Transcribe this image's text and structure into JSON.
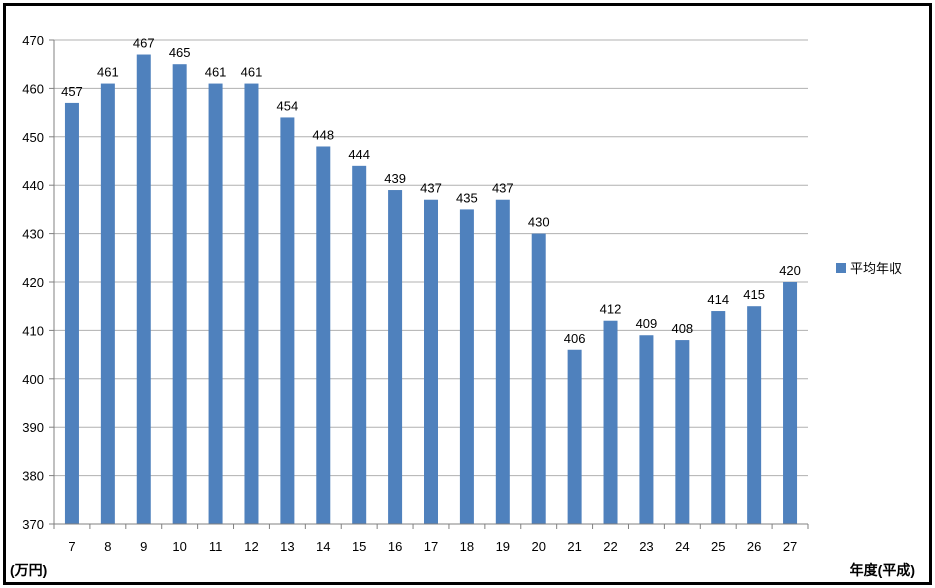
{
  "chart_data": {
    "type": "bar",
    "categories": [
      "7",
      "8",
      "9",
      "10",
      "11",
      "12",
      "13",
      "14",
      "15",
      "16",
      "17",
      "18",
      "19",
      "20",
      "21",
      "22",
      "23",
      "24",
      "25",
      "26",
      "27"
    ],
    "series": [
      {
        "name": "平均年収",
        "values": [
          457,
          461,
          467,
          465,
          461,
          461,
          454,
          448,
          444,
          439,
          437,
          435,
          437,
          430,
          406,
          412,
          409,
          408,
          414,
          415,
          420
        ]
      }
    ],
    "y_ticks": [
      "370",
      "380",
      "390",
      "400",
      "410",
      "420",
      "430",
      "440",
      "450",
      "460",
      "470"
    ],
    "ylim": [
      370,
      470
    ],
    "ylabel": "(万円)",
    "xlabel": "年度(平成)",
    "grid": true,
    "legend_position": "right",
    "colors": {
      "bar": "#4f81bd",
      "grid": "#b0b0b0",
      "axis": "#808080"
    }
  }
}
